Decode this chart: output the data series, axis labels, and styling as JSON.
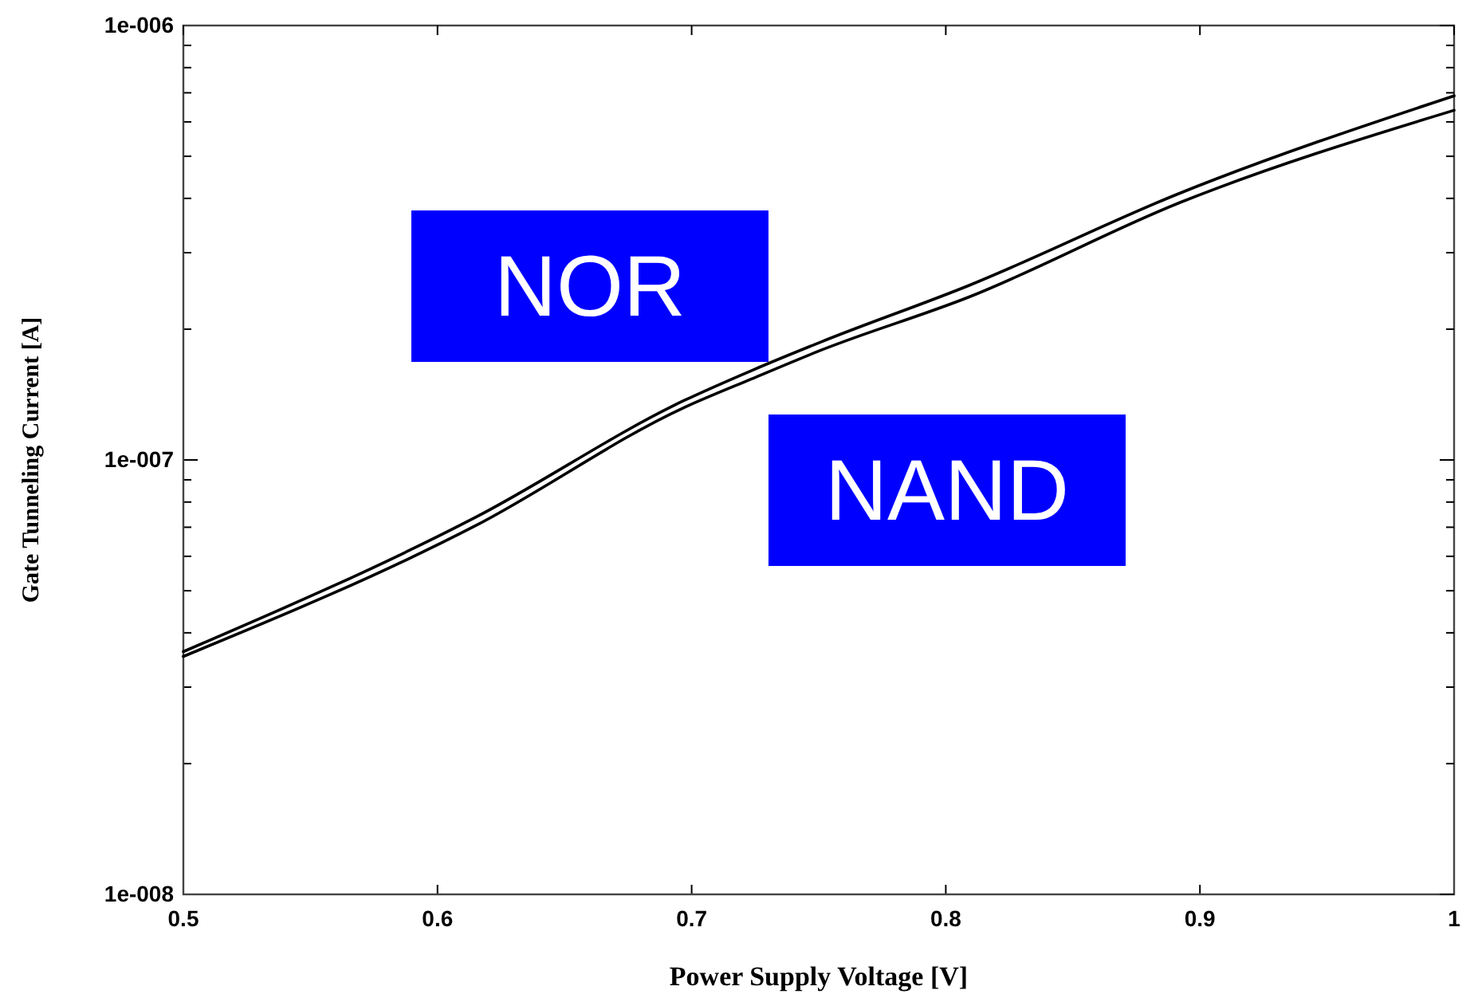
{
  "chart_data": {
    "type": "line",
    "xlabel": "Power Supply Voltage [V]",
    "ylabel": "Gate Tunneling Current [A]",
    "log": "y",
    "xlim": [
      0.5,
      1
    ],
    "xticks": [
      0.5,
      0.6,
      0.7,
      0.8,
      0.9,
      1
    ],
    "ylim": [
      1e-08,
      1e-06
    ],
    "yticks": [
      {
        "value": 1e-08,
        "label": "1e-008"
      },
      {
        "value": 2e-08,
        "label": null
      },
      {
        "value": 3e-08,
        "label": null
      },
      {
        "value": 4e-08,
        "label": null
      },
      {
        "value": 5e-08,
        "label": null
      },
      {
        "value": 6e-08,
        "label": null
      },
      {
        "value": 7e-08,
        "label": null
      },
      {
        "value": 8e-08,
        "label": null
      },
      {
        "value": 9e-08,
        "label": null
      },
      {
        "value": 1e-07,
        "label": "1e-007"
      },
      {
        "value": 2e-07,
        "label": null
      },
      {
        "value": 3e-07,
        "label": null
      },
      {
        "value": 4e-07,
        "label": null
      },
      {
        "value": 5e-07,
        "label": null
      },
      {
        "value": 6e-07,
        "label": null
      },
      {
        "value": 7e-07,
        "label": null
      },
      {
        "value": 8e-07,
        "label": null
      },
      {
        "value": 9e-07,
        "label": null
      },
      {
        "value": 1e-06,
        "label": "1e-006"
      }
    ],
    "grid": false,
    "marker": "none",
    "line_style": "solid",
    "series": [
      {
        "name": "NOR",
        "color": "#000000",
        "x": [
          0.5,
          0.615,
          0.697,
          0.724,
          0.751,
          0.809,
          0.892,
          1.0
        ],
        "values": [
          3.62e-08,
          7.38e-08,
          1.37e-07,
          1.61e-07,
          1.87e-07,
          2.52e-07,
          4.11e-07,
          6.89e-07
        ]
      },
      {
        "name": "NAND",
        "color": "#000000",
        "x": [
          0.5,
          0.615,
          0.697,
          0.724,
          0.751,
          0.809,
          0.892,
          1.0
        ],
        "values": [
          3.53e-08,
          7.06e-08,
          1.32e-07,
          1.54e-07,
          1.79e-07,
          2.37e-07,
          3.91e-07,
          6.38e-07
        ]
      }
    ]
  }
}
